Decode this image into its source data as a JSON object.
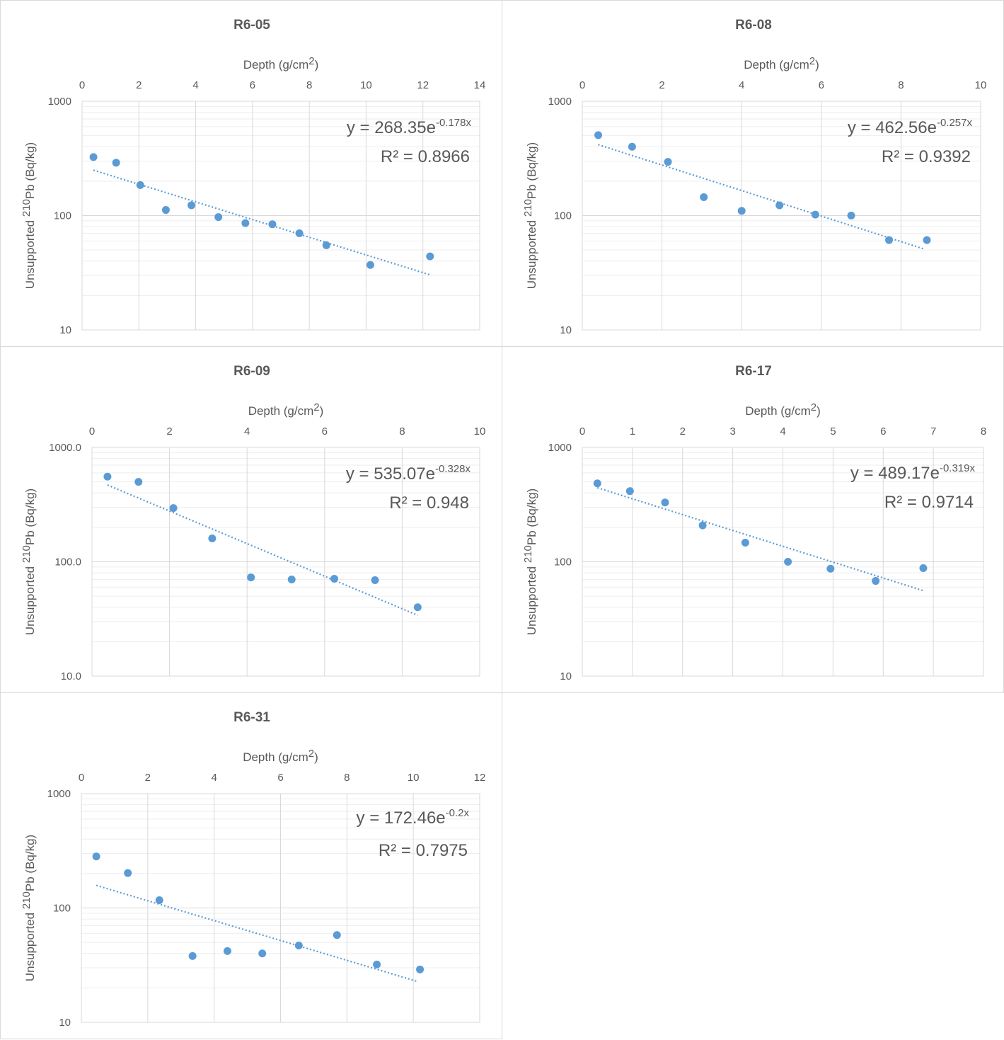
{
  "chart_data": [
    {
      "type": "scatter",
      "title": "R6-05",
      "xlabel": "Depth (g/cm2)",
      "ylabel": "Unsupported 210Pb (Bq/kg)",
      "xlim": [
        0,
        14
      ],
      "xticks": [
        0,
        2,
        4,
        6,
        8,
        10,
        12,
        14
      ],
      "ylim": [
        10,
        1000
      ],
      "yscale": "log",
      "ytick_labels": [
        "1000",
        "100",
        "10"
      ],
      "x": [
        0.4,
        1.2,
        2.05,
        2.95,
        3.85,
        4.8,
        5.75,
        6.7,
        7.65,
        8.6,
        10.15,
        12.25
      ],
      "y": [
        325,
        290,
        185,
        112,
        123,
        97,
        86,
        84,
        70,
        55,
        37,
        44
      ],
      "trendline": {
        "a": 268.35,
        "b": -0.178,
        "x_range": [
          0.4,
          12.25
        ]
      },
      "equation_main": "y = 268.35e",
      "equation_exp": "-0.178x",
      "r2_text": "R² = 0.8966"
    },
    {
      "type": "scatter",
      "title": "R6-08",
      "xlabel": "Depth (g/cm2)",
      "ylabel": "Unsupported 210Pb (Bq/kg)",
      "xlim": [
        0,
        10
      ],
      "xticks": [
        0,
        2,
        4,
        6,
        8,
        10
      ],
      "ylim": [
        10,
        1000
      ],
      "yscale": "log",
      "ytick_labels": [
        "1000",
        "100",
        "10"
      ],
      "x": [
        0.4,
        1.25,
        2.15,
        3.05,
        4.0,
        4.95,
        5.85,
        6.75,
        7.7,
        8.65
      ],
      "y": [
        505,
        400,
        295,
        145,
        110,
        123,
        102,
        100,
        61,
        61
      ],
      "trendline": {
        "a": 462.56,
        "b": -0.257,
        "x_range": [
          0.4,
          8.6
        ]
      },
      "equation_main": "y = 462.56e",
      "equation_exp": "-0.257x",
      "r2_text": "R² = 0.9392"
    },
    {
      "type": "scatter",
      "title": "R6-09",
      "xlabel": "Depth (g/cm2)",
      "ylabel": "Unsupported 210Pb (Bq/kg)",
      "xlim": [
        0,
        10
      ],
      "xticks": [
        0,
        2,
        4,
        6,
        8,
        10
      ],
      "ylim": [
        10,
        1000
      ],
      "yscale": "log",
      "ytick_labels": [
        "1000.0",
        "100.0",
        "10.0"
      ],
      "x": [
        0.4,
        1.2,
        2.1,
        3.1,
        4.1,
        5.15,
        6.25,
        7.3,
        8.4
      ],
      "y": [
        555,
        500,
        295,
        160,
        73,
        70,
        71,
        69,
        40
      ],
      "trendline": {
        "a": 535.07,
        "b": -0.328,
        "x_range": [
          0.4,
          8.4
        ]
      },
      "equation_main": "y = 535.07e",
      "equation_exp": "-0.328x",
      "r2_text": "R² = 0.948"
    },
    {
      "type": "scatter",
      "title": "R6-17",
      "xlabel": "Depth (g/cm2)",
      "ylabel": "Unsupported 210Pb (Bq/kg)",
      "xlim": [
        0,
        8
      ],
      "xticks": [
        0,
        1,
        2,
        3,
        4,
        5,
        6,
        7,
        8
      ],
      "ylim": [
        10,
        1000
      ],
      "yscale": "log",
      "ytick_labels": [
        "1000",
        "100",
        "10"
      ],
      "x": [
        0.3,
        0.95,
        1.65,
        2.4,
        3.25,
        4.1,
        4.95,
        5.85,
        6.8
      ],
      "y": [
        485,
        415,
        330,
        208,
        147,
        100,
        87,
        68,
        88
      ],
      "trendline": {
        "a": 489.17,
        "b": -0.319,
        "x_range": [
          0.3,
          6.8
        ]
      },
      "equation_main": "y = 489.17e",
      "equation_exp": "-0.319x",
      "r2_text": "R² = 0.9714"
    },
    {
      "type": "scatter",
      "title": "R6-31",
      "xlabel": "Depth (g/cm2)",
      "ylabel": "Unsupported 210Pb (Bq/kg)",
      "xlim": [
        0,
        12
      ],
      "xticks": [
        0,
        2,
        4,
        6,
        8,
        10,
        12
      ],
      "ylim": [
        10,
        1000
      ],
      "yscale": "log",
      "ytick_labels": [
        "1000",
        "100",
        "10"
      ],
      "x": [
        0.45,
        1.4,
        2.35,
        3.35,
        4.4,
        5.45,
        6.55,
        7.7,
        8.9,
        10.2
      ],
      "y": [
        282,
        202,
        117,
        38,
        42,
        40,
        47,
        58,
        32,
        29
      ],
      "trendline": {
        "a": 172.46,
        "b": -0.2,
        "x_range": [
          0.45,
          10.15
        ]
      },
      "equation_main": "y = 172.46e",
      "equation_exp": "-0.2x",
      "r2_text": "R² = 0.7975"
    }
  ]
}
